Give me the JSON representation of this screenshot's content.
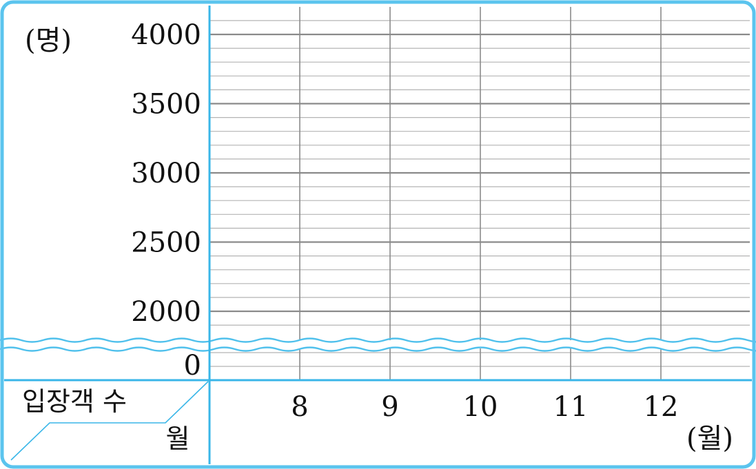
{
  "chart_data": {
    "type": "line",
    "title": "",
    "ylabel": "(명)",
    "xlabel": "(월)",
    "corner_top_label": "입장객 수",
    "corner_bottom_label": "월",
    "categories": [
      "8",
      "9",
      "10",
      "11",
      "12"
    ],
    "y_ticks": [
      "4000",
      "3500",
      "3000",
      "2500",
      "2000",
      "0"
    ],
    "ylim": [
      2000,
      4000
    ],
    "y_minor_step": 100,
    "y_axis_break": true,
    "series": [],
    "grid": true
  },
  "colors": {
    "frame": "#5bc4ee",
    "axis": "#39b6e8",
    "break_wave": "#4fc0ec",
    "grid_major": "#8a8a8a",
    "grid_minor": "#b4b4b4",
    "text": "#111111"
  }
}
